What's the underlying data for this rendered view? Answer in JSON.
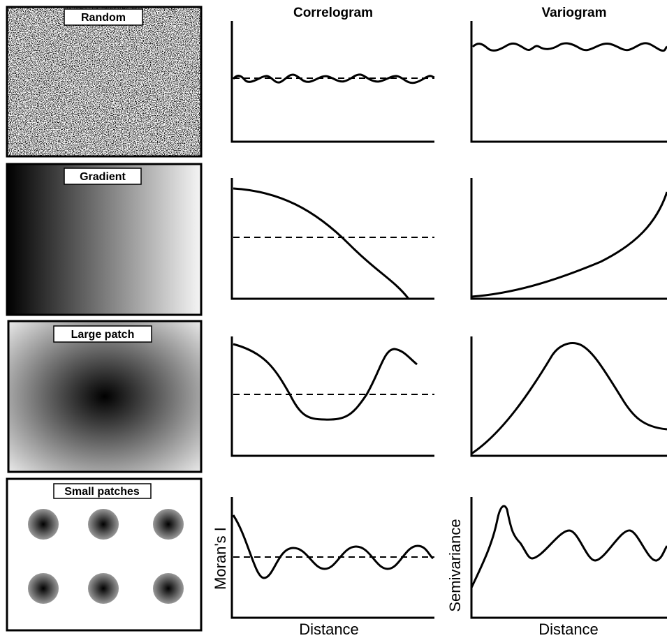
{
  "columns": [
    "Correlogram",
    "Variogram"
  ],
  "patterns": [
    "Random",
    "Gradient",
    "Large patch",
    "Small patches"
  ],
  "axes": {
    "correlogram_y": "Moran's I",
    "variogram_y": "Semivariance",
    "x": "Distance"
  }
}
